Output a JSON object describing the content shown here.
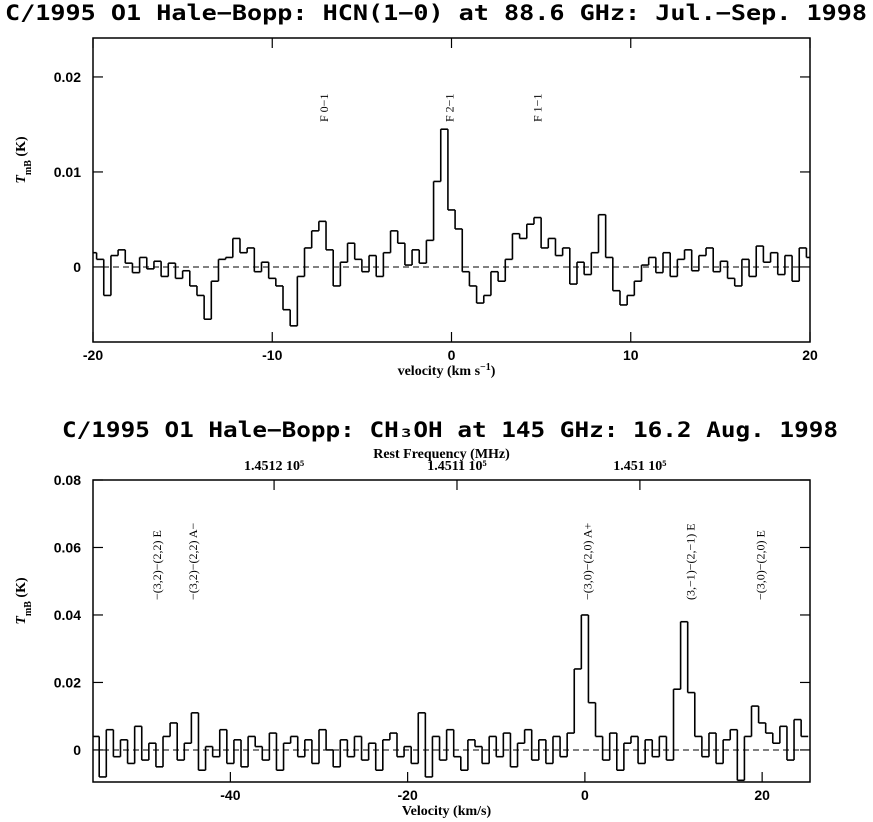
{
  "chart_data": [
    {
      "type": "line",
      "title": "C/1995 O1 Hale−Bopp: HCN(1−0) at  88.6 GHz: Jul.−Sep. 1998",
      "xlabel": [
        "velocity (km s",
        "−1",
        ")"
      ],
      "ylabel": [
        "T",
        "mB",
        " (K)"
      ],
      "xlim": [
        -20,
        20
      ],
      "ylim": [
        -0.0079,
        0.0241
      ],
      "xticks": [
        -20,
        -10,
        0,
        10,
        20
      ],
      "yticks": [
        0,
        0.01,
        0.02
      ],
      "color": "#000000",
      "annotations": [
        {
          "text": "F 0−1",
          "x": -7.1
        },
        {
          "text": "F 2−1",
          "x": -0.1
        },
        {
          "text": "F 1−1",
          "x": 4.8
        }
      ],
      "x": [
        -20,
        -19.6,
        -19.2,
        -18.8,
        -18.4,
        -18,
        -17.6,
        -17.2,
        -16.8,
        -16.4,
        -16,
        -15.6,
        -15.2,
        -14.8,
        -14.4,
        -14,
        -13.6,
        -13.2,
        -12.8,
        -12.4,
        -12,
        -11.6,
        -11.2,
        -10.8,
        -10.4,
        -10,
        -9.6,
        -9.2,
        -8.8,
        -8.4,
        -8,
        -7.6,
        -7.2,
        -6.8,
        -6.4,
        -6,
        -5.6,
        -5.2,
        -4.8,
        -4.4,
        -4,
        -3.6,
        -3.2,
        -2.8,
        -2.4,
        -2,
        -1.6,
        -1.2,
        -0.8,
        -0.4,
        0,
        0.4,
        0.8,
        1.2,
        1.6,
        2,
        2.4,
        2.8,
        3.2,
        3.6,
        4,
        4.4,
        4.8,
        5.2,
        5.6,
        6,
        6.4,
        6.8,
        7.2,
        7.6,
        8,
        8.4,
        8.8,
        9.2,
        9.6,
        10,
        10.4,
        10.8,
        11.2,
        11.6,
        12,
        12.4,
        12.8,
        13.2,
        13.6,
        14,
        14.4,
        14.8,
        15.2,
        15.6,
        16,
        16.4,
        16.8,
        17.2,
        17.6,
        18,
        18.4,
        18.8,
        19.2,
        19.6,
        20
      ],
      "values": [
        0.0015,
        0.0008,
        -0.003,
        0.0012,
        0.0018,
        0.0004,
        -0.0006,
        0.001,
        -0.0002,
        0.0006,
        -0.001,
        0.0004,
        -0.0012,
        -0.0004,
        -0.002,
        -0.003,
        -0.0055,
        -0.0015,
        0.0008,
        0.001,
        0.003,
        0.0015,
        0.002,
        -0.0005,
        0.0005,
        -0.0012,
        -0.002,
        -0.0045,
        -0.0062,
        -0.001,
        0.002,
        0.0038,
        0.0048,
        0.0018,
        -0.002,
        0.0005,
        0.0025,
        0.0008,
        -0.0005,
        0.0012,
        -0.001,
        0.0015,
        0.0038,
        0.0025,
        0.0002,
        0.0018,
        0.0004,
        0.0028,
        0.009,
        0.0145,
        0.006,
        0.004,
        -0.0005,
        -0.002,
        -0.0038,
        -0.003,
        -0.0005,
        -0.0015,
        0.0008,
        0.0035,
        0.003,
        0.0045,
        0.0052,
        0.002,
        0.003,
        0.0012,
        0.002,
        -0.0018,
        0.0005,
        -0.0008,
        0.0015,
        0.0055,
        0.001,
        -0.0025,
        -0.004,
        -0.003,
        -0.0015,
        0.0002,
        0.001,
        -0.0006,
        0.0015,
        -0.001,
        0.0008,
        0.0018,
        -0.0004,
        0.0012,
        0.002,
        -0.0005,
        0.0006,
        -0.0012,
        -0.002,
        0.0008,
        -0.001,
        0.0022,
        0.0005,
        0.0015,
        -0.0008,
        0.0012,
        -0.0015,
        0.002,
        0.001
      ]
    },
    {
      "type": "line",
      "title": "C/1995 O1 Hale−Bopp: CH₃OH at 145 GHz: 16.2 Aug. 1998",
      "xlabel": [
        "Velocity (km/s)"
      ],
      "ylabel": [
        "T",
        "mB",
        " (K)"
      ],
      "x2label": "Rest Frequency (MHz)",
      "xlim": [
        -55.5,
        25.4
      ],
      "ylim": [
        -0.0095,
        0.08
      ],
      "x2lim": [
        145129.9,
        145090.7
      ],
      "xticks": [
        -40,
        -20,
        0,
        20
      ],
      "yticks": [
        0,
        0.02,
        0.04,
        0.06,
        0.08
      ],
      "x2ticks": [
        {
          "value": 145120,
          "label": "1.4512 10⁵"
        },
        {
          "value": 145110,
          "label": "1.4511 10⁵"
        },
        {
          "value": 145100,
          "label": "1.451 10⁵"
        }
      ],
      "color": "#000000",
      "annotations": [
        {
          "text": "−(3,2)−(2,2) E",
          "x": -48.3
        },
        {
          "text": "−(3,2)−(2,2) A−",
          "x": -44.2
        },
        {
          "text": "−(3,0)−(2,0) A+",
          "x": 0.3
        },
        {
          "text": "(3,−1)−(2,−1) E",
          "x": 11.9
        },
        {
          "text": "−(3,0)−(2,0) E",
          "x": 19.8
        }
      ],
      "x": [
        -55.2,
        -54.4,
        -53.6,
        -52.8,
        -52,
        -51.2,
        -50.4,
        -49.6,
        -48.8,
        -48,
        -47.2,
        -46.4,
        -45.6,
        -44.8,
        -44,
        -43.2,
        -42.4,
        -41.6,
        -40.8,
        -40,
        -39.2,
        -38.4,
        -37.6,
        -36.8,
        -36,
        -35.2,
        -34.4,
        -33.6,
        -32.8,
        -32,
        -31.2,
        -30.4,
        -29.6,
        -28.8,
        -28,
        -27.2,
        -26.4,
        -25.6,
        -24.8,
        -24,
        -23.2,
        -22.4,
        -21.6,
        -20.8,
        -20,
        -19.2,
        -18.4,
        -17.6,
        -16.8,
        -16,
        -15.2,
        -14.4,
        -13.6,
        -12.8,
        -12,
        -11.2,
        -10.4,
        -9.6,
        -8.8,
        -8,
        -7.2,
        -6.4,
        -5.6,
        -4.8,
        -4,
        -3.2,
        -2.4,
        -1.6,
        -0.8,
        0,
        0.8,
        1.6,
        2.4,
        3.2,
        4,
        4.8,
        5.6,
        6.4,
        7.2,
        8,
        8.8,
        9.6,
        10.4,
        11.2,
        12,
        12.8,
        13.6,
        14.4,
        15.2,
        16,
        16.8,
        17.6,
        18.4,
        19.2,
        20,
        20.8,
        21.6,
        22.4,
        23.2,
        24,
        24.8
      ],
      "values": [
        0.004,
        -0.008,
        0.006,
        -0.002,
        0.003,
        -0.004,
        0.007,
        -0.003,
        0.002,
        -0.005,
        0.004,
        0.008,
        -0.003,
        0.002,
        0.011,
        -0.006,
        0.001,
        -0.002,
        0.006,
        -0.004,
        0.003,
        -0.005,
        0.004,
        0.001,
        -0.003,
        0.005,
        -0.006,
        0.002,
        0.004,
        -0.002,
        0.003,
        -0.004,
        0.006,
        0,
        -0.005,
        0.003,
        -0.002,
        0.004,
        -0.003,
        0.002,
        -0.006,
        0.003,
        0.005,
        -0.002,
        0.001,
        -0.004,
        0.011,
        -0.008,
        0.004,
        -0.003,
        0.006,
        -0.002,
        -0.006,
        0.003,
        0.001,
        -0.004,
        0.004,
        -0.002,
        0.005,
        -0.005,
        0.002,
        0.006,
        -0.003,
        0.003,
        -0.004,
        0.004,
        -0.002,
        0.005,
        0.024,
        0.04,
        0.014,
        0.004,
        -0.003,
        0.005,
        -0.006,
        0.002,
        0.004,
        -0.004,
        0.003,
        -0.002,
        0.004,
        -0.003,
        0.018,
        0.038,
        0.017,
        0.004,
        -0.002,
        0.005,
        -0.004,
        0.003,
        0.006,
        -0.009,
        0.004,
        0.013,
        0.008,
        0.005,
        0.002,
        0.007,
        -0.003,
        0.009,
        0.004
      ]
    }
  ]
}
